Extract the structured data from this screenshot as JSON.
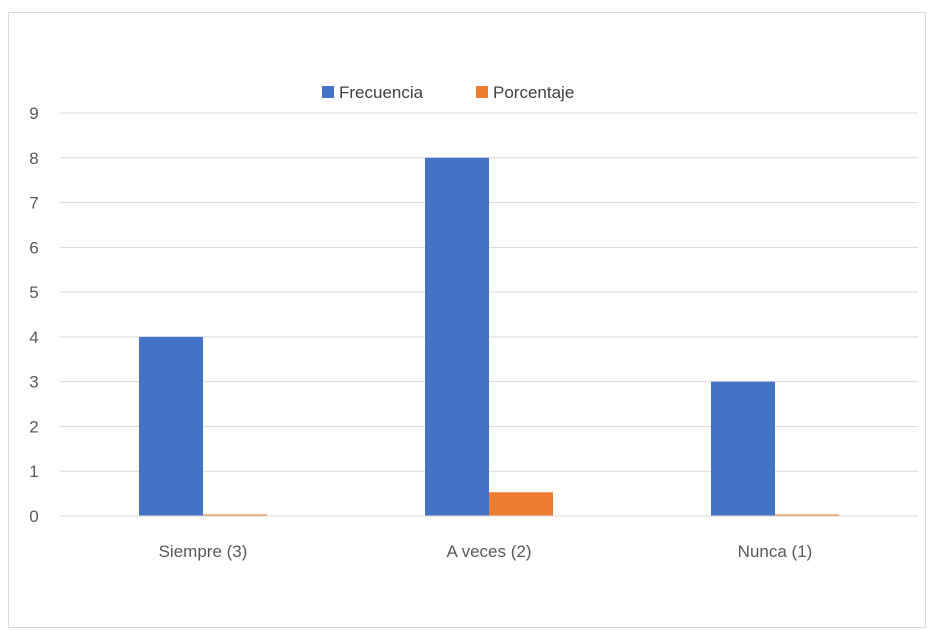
{
  "chart_data": {
    "type": "bar",
    "categories": [
      "Siempre (3)",
      "A veces (2)",
      "Nunca (1)"
    ],
    "series": [
      {
        "name": "Frecuencia",
        "values": [
          4,
          8,
          3
        ],
        "color": "#4472C4"
      },
      {
        "name": "Porcentaje",
        "values": [
          0.0,
          0.53,
          0.0
        ],
        "color": "#ED7D31"
      }
    ],
    "yticks": [
      "0",
      "1",
      "2",
      "3",
      "4",
      "5",
      "6",
      "7",
      "8",
      "9"
    ],
    "ylim": [
      0,
      9
    ],
    "grid": true,
    "legend_position": "top"
  }
}
